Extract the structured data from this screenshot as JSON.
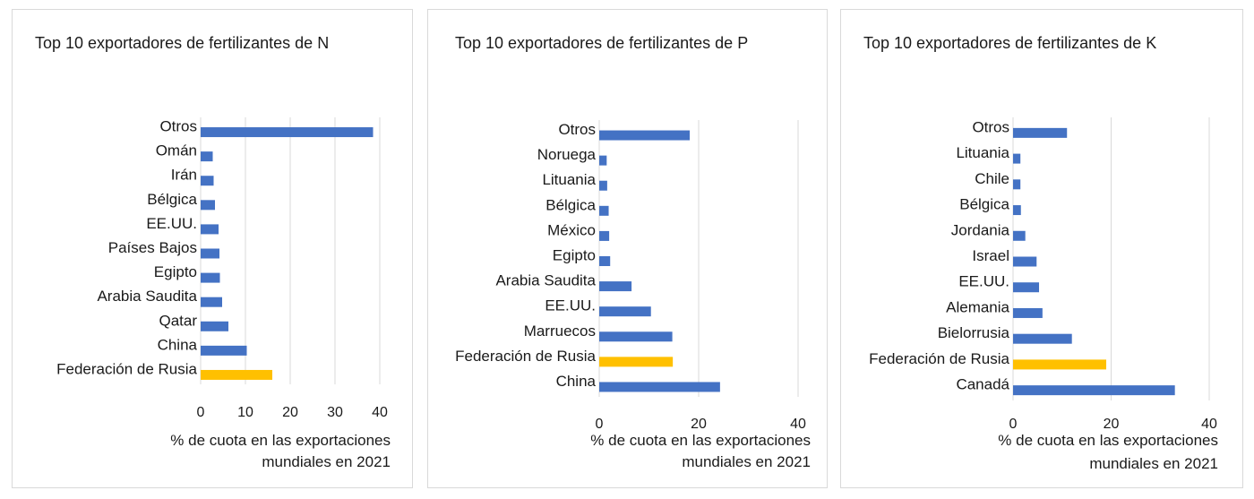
{
  "chart_data": [
    {
      "type": "bar",
      "orientation": "horizontal",
      "title": "Top 10 exportadores de fertilizantes de N",
      "categories": [
        "Federación de Rusia",
        "China",
        "Qatar",
        "Arabia Saudita",
        "Egipto",
        "Países Bajos",
        "EE.UU.",
        "Bélgica",
        "Irán",
        "Omán",
        "Otros"
      ],
      "values": [
        16,
        10.3,
        6.2,
        4.8,
        4.3,
        4.2,
        4.0,
        3.2,
        2.9,
        2.7,
        38.5
      ],
      "highlight_index": 0,
      "xlim": [
        0,
        40
      ],
      "xticks": [
        0,
        10,
        20,
        30,
        40
      ],
      "xlabel_lines": [
        "% de cuota en las exportaciones",
        "mundiales en 2021"
      ],
      "grid": true
    },
    {
      "type": "bar",
      "orientation": "horizontal",
      "title": "Top 10 exportadores de fertilizantes de P",
      "categories": [
        "China",
        "Federación de Rusia",
        "Marruecos",
        "EE.UU.",
        "Arabia Saudita",
        "Egipto",
        "México",
        "Bélgica",
        "Lituania",
        "Noruega",
        "Otros"
      ],
      "values": [
        24.3,
        14.8,
        14.7,
        10.4,
        6.5,
        2.2,
        2.0,
        1.9,
        1.6,
        1.5,
        18.2
      ],
      "highlight_index": 1,
      "xlim": [
        0,
        40
      ],
      "xticks": [
        0,
        20,
        40
      ],
      "xlabel_lines": [
        "% de cuota en las exportaciones",
        "mundiales en 2021"
      ],
      "grid": true
    },
    {
      "type": "bar",
      "orientation": "horizontal",
      "title": "Top 10 exportadores de fertilizantes de K",
      "categories": [
        "Canadá",
        "Federación de Rusia",
        "Bielorrusia",
        "Alemania",
        "EE.UU.",
        "Israel",
        "Jordania",
        "Bélgica",
        "Chile",
        "Lituania",
        "Otros"
      ],
      "values": [
        33,
        19,
        12,
        6,
        5.3,
        4.8,
        2.5,
        1.6,
        1.5,
        1.5,
        11
      ],
      "highlight_index": 1,
      "xlim": [
        0,
        40
      ],
      "xticks": [
        0,
        20,
        40
      ],
      "xlabel_lines": [
        "% de cuota en las exportaciones",
        "mundiales en 2021"
      ],
      "grid": true
    }
  ],
  "colors": {
    "bar": "#4472c4",
    "highlight": "#ffc000",
    "grid": "#d9d9d9"
  }
}
